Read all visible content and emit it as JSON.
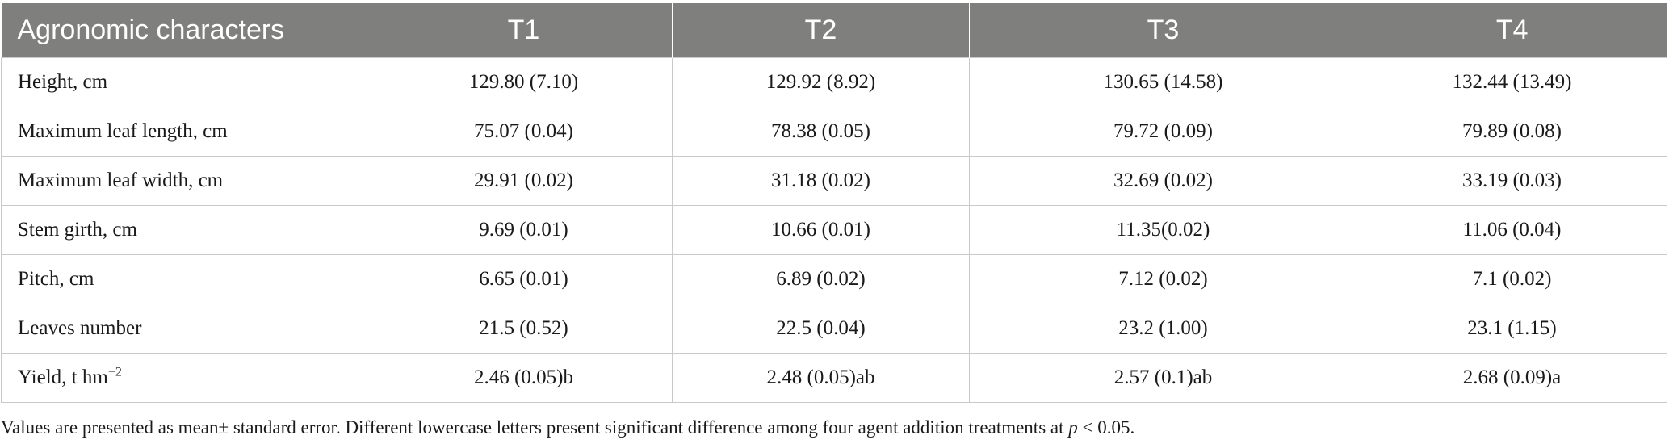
{
  "table": {
    "headers": [
      "Agronomic characters",
      "T1",
      "T2",
      "T3",
      "T4"
    ],
    "rows": [
      {
        "label": "Height, cm",
        "values": [
          "129.80 (7.10)",
          "129.92 (8.92)",
          "130.65 (14.58)",
          "132.44 (13.49)"
        ]
      },
      {
        "label": "Maximum leaf length, cm",
        "values": [
          "75.07 (0.04)",
          "78.38 (0.05)",
          "79.72 (0.09)",
          "79.89 (0.08)"
        ]
      },
      {
        "label": "Maximum leaf width, cm",
        "values": [
          "29.91 (0.02)",
          "31.18 (0.02)",
          "32.69 (0.02)",
          "33.19 (0.03)"
        ]
      },
      {
        "label": "Stem girth, cm",
        "values": [
          "9.69 (0.01)",
          "10.66 (0.01)",
          "11.35(0.02)",
          "11.06 (0.04)"
        ]
      },
      {
        "label": "Pitch, cm",
        "values": [
          "6.65 (0.01)",
          "6.89 (0.02)",
          "7.12 (0.02)",
          "7.1 (0.02)"
        ]
      },
      {
        "label": "Leaves number",
        "values": [
          "21.5 (0.52)",
          "22.5 (0.04)",
          "23.2 (1.00)",
          "23.1 (1.15)"
        ]
      },
      {
        "label_main": "Yield, t hm",
        "label_sup": "−2",
        "values": [
          "2.46 (0.05)b",
          "2.48 (0.05)ab",
          "2.57 (0.1)ab",
          "2.68 (0.09)a"
        ]
      }
    ]
  },
  "note": {
    "text_before": "Values are presented as mean± standard error. Different lowercase letters present significant difference among four agent addition treatments at ",
    "italic": "p",
    "text_after": " < 0.05."
  }
}
